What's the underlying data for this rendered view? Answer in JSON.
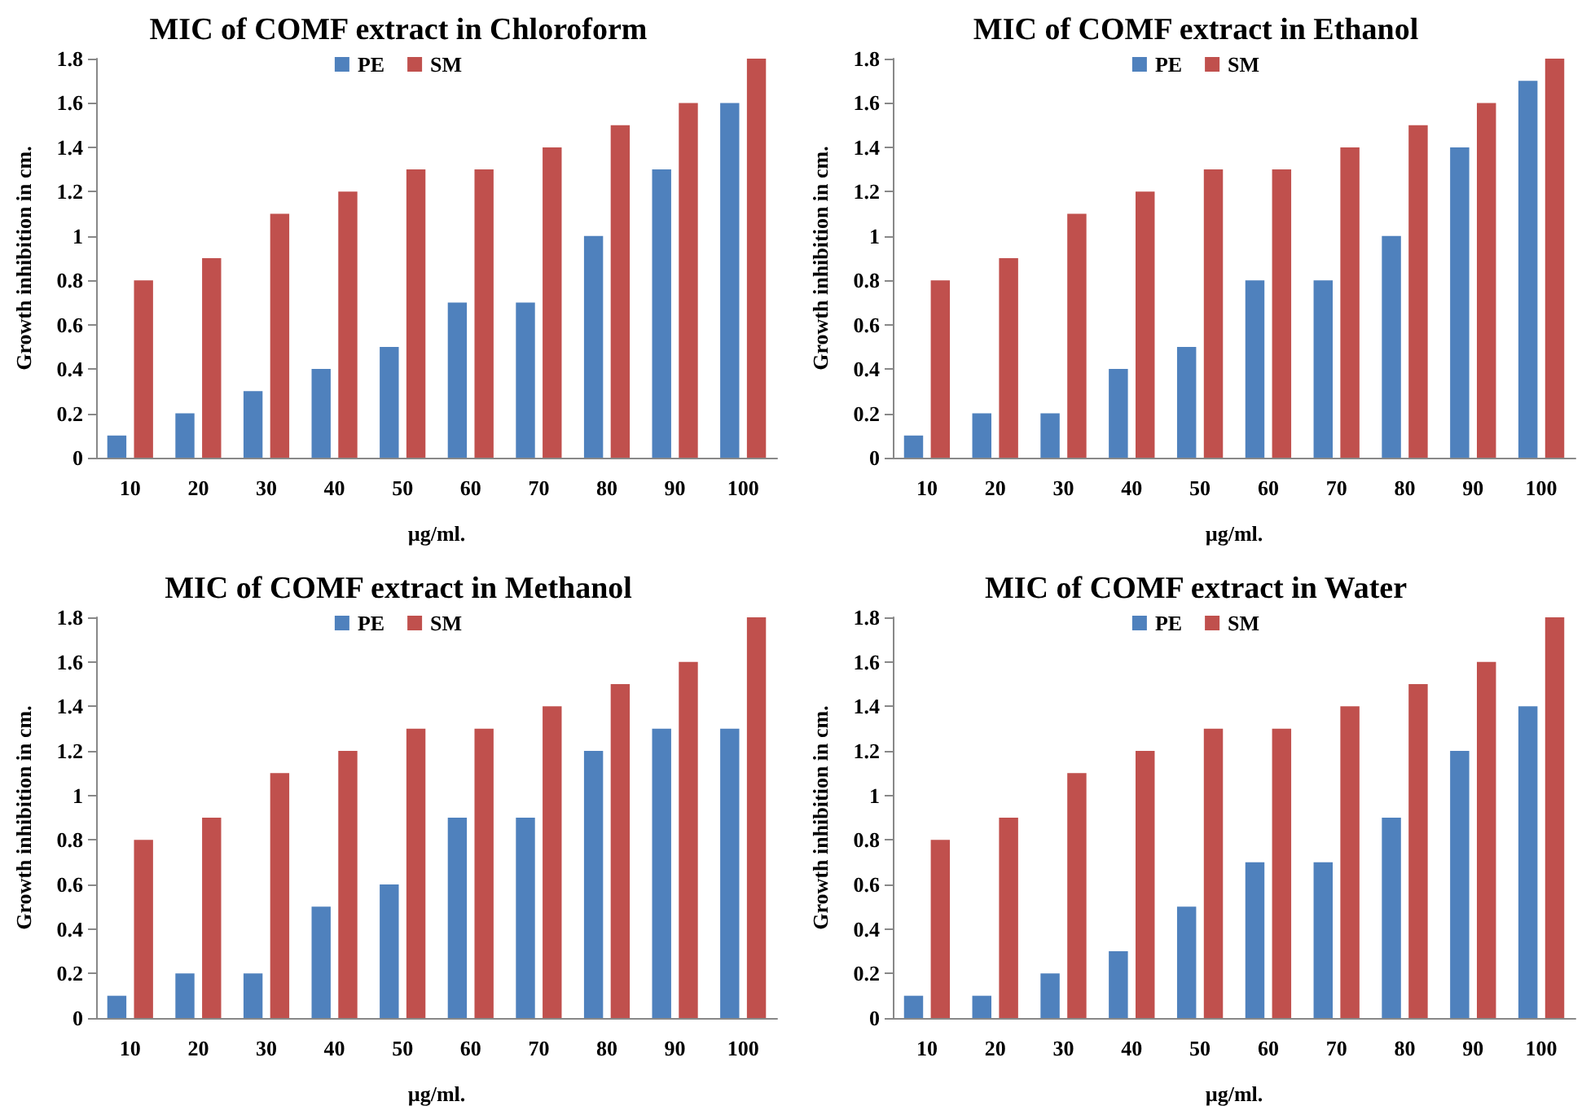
{
  "chart_data": [
    {
      "type": "bar",
      "title": "MIC of COMF extract in Chloroform",
      "xlabel": "µg/ml.",
      "ylabel": "Growth inhibition in cm.",
      "categories": [
        "10",
        "20",
        "30",
        "40",
        "50",
        "60",
        "70",
        "80",
        "90",
        "100"
      ],
      "series": [
        {
          "name": "PE",
          "color": "#4f81bd",
          "values": [
            0.1,
            0.2,
            0.3,
            0.4,
            0.5,
            0.7,
            0.7,
            1.0,
            1.3,
            1.6
          ]
        },
        {
          "name": "SM",
          "color": "#c0504d",
          "values": [
            0.8,
            0.9,
            1.1,
            1.2,
            1.3,
            1.3,
            1.4,
            1.5,
            1.6,
            1.8
          ]
        }
      ],
      "ylim": [
        0,
        1.8
      ],
      "yticks": [
        0,
        0.2,
        0.4,
        0.6,
        0.8,
        1,
        1.2,
        1.4,
        1.6,
        1.8
      ],
      "grid": false,
      "legend": "top"
    },
    {
      "type": "bar",
      "title": "MIC of COMF extract in Ethanol",
      "xlabel": "µg/ml.",
      "ylabel": "Growth inhibition in cm.",
      "categories": [
        "10",
        "20",
        "30",
        "40",
        "50",
        "60",
        "70",
        "80",
        "90",
        "100"
      ],
      "series": [
        {
          "name": "PE",
          "color": "#4f81bd",
          "values": [
            0.1,
            0.2,
            0.2,
            0.4,
            0.5,
            0.8,
            0.8,
            1.0,
            1.4,
            1.7
          ]
        },
        {
          "name": "SM",
          "color": "#c0504d",
          "values": [
            0.8,
            0.9,
            1.1,
            1.2,
            1.3,
            1.3,
            1.4,
            1.5,
            1.6,
            1.8
          ]
        }
      ],
      "ylim": [
        0,
        1.8
      ],
      "yticks": [
        0,
        0.2,
        0.4,
        0.6,
        0.8,
        1,
        1.2,
        1.4,
        1.6,
        1.8
      ],
      "grid": false,
      "legend": "top"
    },
    {
      "type": "bar",
      "title": "MIC of COMF extract in Methanol",
      "xlabel": "µg/ml.",
      "ylabel": "Growth inhibition in cm.",
      "categories": [
        "10",
        "20",
        "30",
        "40",
        "50",
        "60",
        "70",
        "80",
        "90",
        "100"
      ],
      "series": [
        {
          "name": "PE",
          "color": "#4f81bd",
          "values": [
            0.1,
            0.2,
            0.2,
            0.5,
            0.6,
            0.9,
            0.9,
            1.2,
            1.3,
            1.3
          ]
        },
        {
          "name": "SM",
          "color": "#c0504d",
          "values": [
            0.8,
            0.9,
            1.1,
            1.2,
            1.3,
            1.3,
            1.4,
            1.5,
            1.6,
            1.8
          ]
        }
      ],
      "ylim": [
        0,
        1.8
      ],
      "yticks": [
        0,
        0.2,
        0.4,
        0.6,
        0.8,
        1,
        1.2,
        1.4,
        1.6,
        1.8
      ],
      "grid": false,
      "legend": "top"
    },
    {
      "type": "bar",
      "title": "MIC of COMF extract in Water",
      "xlabel": "µg/ml.",
      "ylabel": "Growth inhibition in cm.",
      "categories": [
        "10",
        "20",
        "30",
        "40",
        "50",
        "60",
        "70",
        "80",
        "90",
        "100"
      ],
      "series": [
        {
          "name": "PE",
          "color": "#4f81bd",
          "values": [
            0.1,
            0.1,
            0.2,
            0.3,
            0.5,
            0.7,
            0.7,
            0.9,
            1.2,
            1.4
          ]
        },
        {
          "name": "SM",
          "color": "#c0504d",
          "values": [
            0.8,
            0.9,
            1.1,
            1.2,
            1.3,
            1.3,
            1.4,
            1.5,
            1.6,
            1.8
          ]
        }
      ],
      "ylim": [
        0,
        1.8
      ],
      "yticks": [
        0,
        0.2,
        0.4,
        0.6,
        0.8,
        1,
        1.2,
        1.4,
        1.6,
        1.8
      ],
      "grid": false,
      "legend": "top"
    }
  ]
}
